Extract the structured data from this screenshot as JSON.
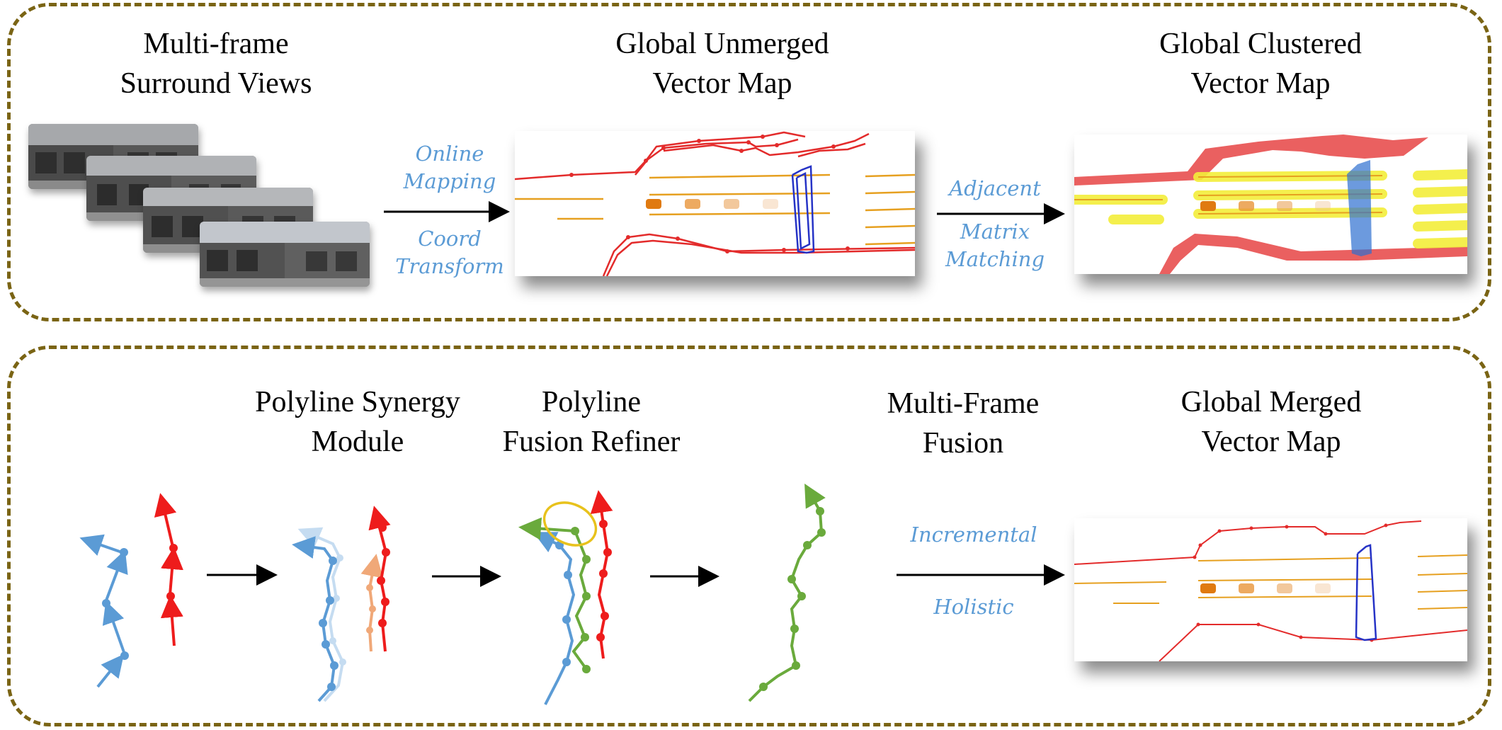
{
  "top_panel": {
    "stage1_title": [
      "Multi-frame",
      "Surround Views"
    ],
    "stage2_title": [
      "Global Unmerged",
      "Vector Map"
    ],
    "stage3_title": [
      "Global Clustered",
      "Vector Map"
    ],
    "arrow1_labels": [
      "Online",
      "Mapping",
      "Coord",
      "Transform"
    ],
    "arrow2_labels": [
      "Adjacent",
      "Matrix",
      "Matching"
    ]
  },
  "bottom_panel": {
    "module1_title": [
      "Polyline Synergy",
      "Module"
    ],
    "module2_title": [
      "Polyline",
      "Fusion Refiner"
    ],
    "module3_title": [
      "Multi-Frame",
      "Fusion"
    ],
    "output_title": [
      "Global Merged",
      "Vector Map"
    ],
    "arrow_labels": [
      "Incremental",
      "Holistic"
    ]
  },
  "colors": {
    "border": "#7a6414",
    "label_blue": "#5b9bd5",
    "boundary_red": "#e32b2b",
    "divider_orange": "#e6a020",
    "crossing_blue": "#2633c6",
    "poly_blue": "#5b9bd5",
    "poly_red": "#ee1c1c",
    "poly_green": "#6aaa3c",
    "poly_orange": "#f0a878",
    "cluster_yellow": "#f3ee3a"
  }
}
